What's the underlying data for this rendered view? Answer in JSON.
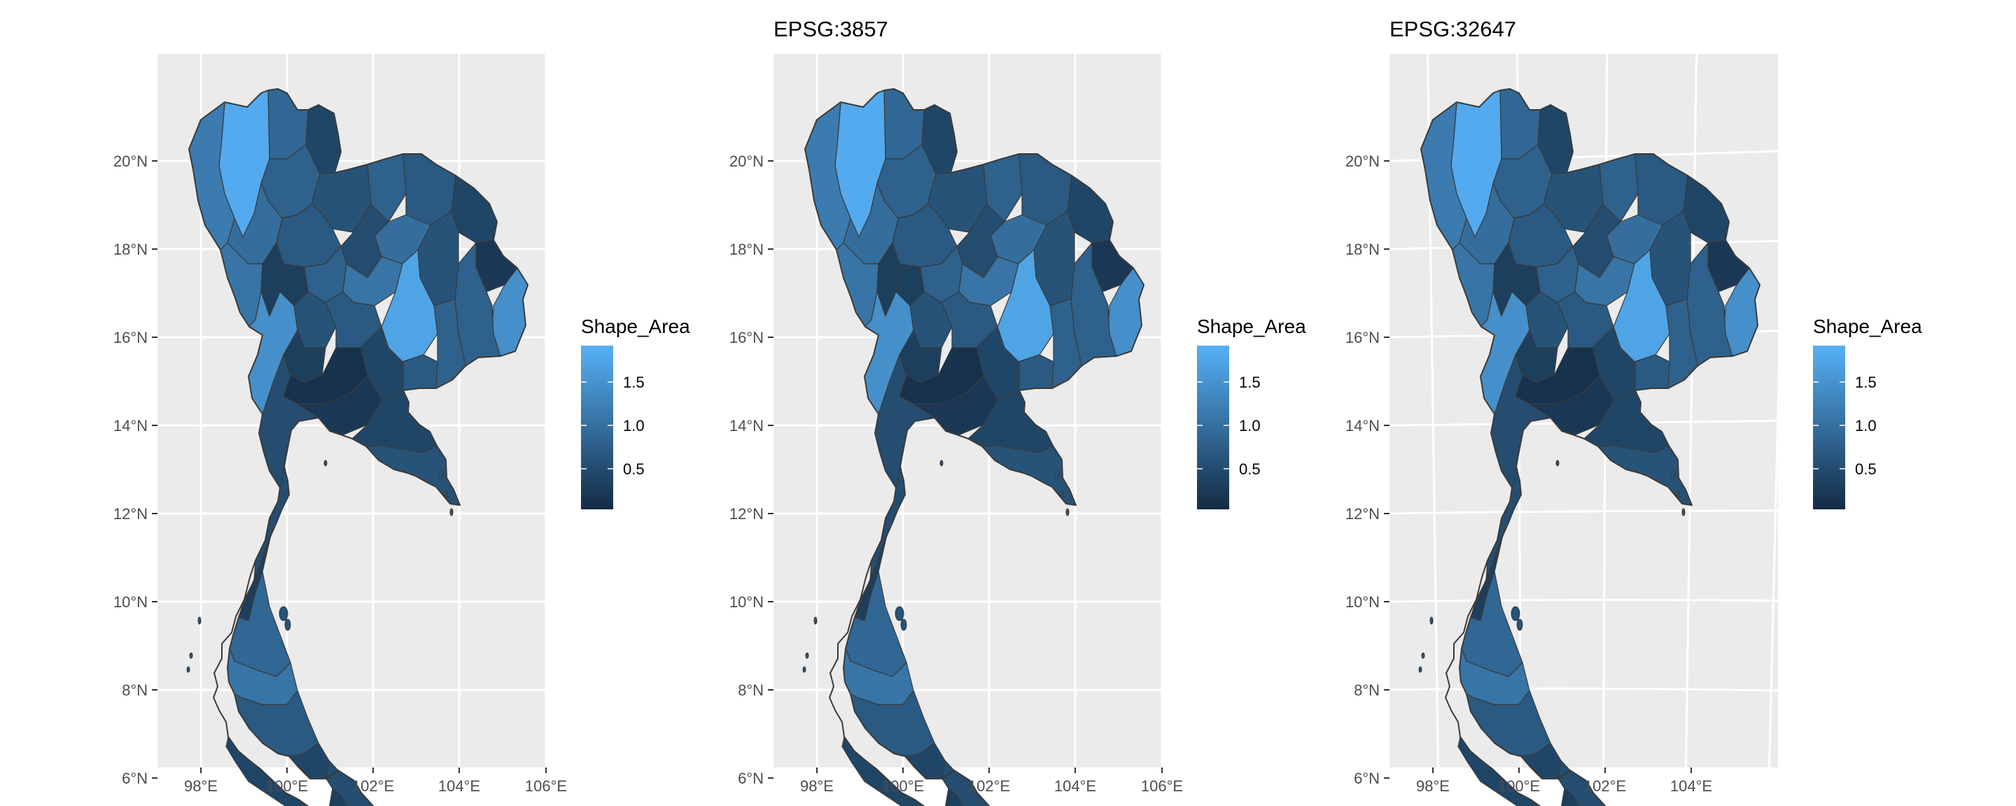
{
  "panels": [
    {
      "title": "",
      "x_ticks": [
        "98°E",
        "100°E",
        "102°E",
        "104°E",
        "106°E"
      ],
      "y_ticks": [
        "20°N",
        "18°N",
        "16°N",
        "14°N",
        "12°N",
        "10°N",
        "8°N",
        "6°N"
      ],
      "graticule": "straight"
    },
    {
      "title": "EPSG:3857",
      "x_ticks": [
        "98°E",
        "100°E",
        "102°E",
        "104°E",
        "106°E"
      ],
      "y_ticks": [
        "20°N",
        "18°N",
        "16°N",
        "14°N",
        "12°N",
        "10°N",
        "8°N",
        "6°N"
      ],
      "graticule": "straight"
    },
    {
      "title": "EPSG:32647",
      "x_ticks": [
        "98°E",
        "100°E",
        "102°E",
        "104°E"
      ],
      "y_ticks": [
        "20°N",
        "18°N",
        "16°N",
        "14°N",
        "12°N",
        "10°N",
        "8°N",
        "6°N"
      ],
      "graticule": "curved"
    }
  ],
  "legend": {
    "title": "Shape_Area",
    "labels": [
      "1.5",
      "1.0",
      "0.5"
    ],
    "colors": {
      "high": "#56B1F7",
      "low": "#132B43"
    }
  },
  "colors": {
    "panel_background": "#EBEBEB",
    "grid": "#FFFFFF",
    "region_outline": "#3a3a3a",
    "fill_low": "#132B43",
    "fill_high": "#56B1F7"
  }
}
